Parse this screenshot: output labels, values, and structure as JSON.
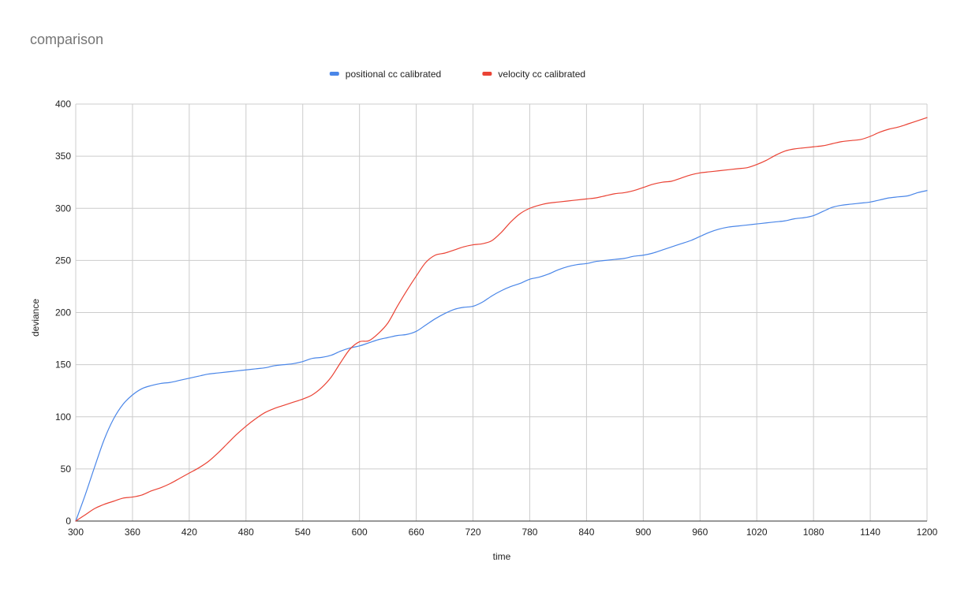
{
  "chart_data": {
    "type": "line",
    "title": "comparison",
    "xlabel": "time",
    "ylabel": "deviance",
    "xlim": [
      300,
      1200
    ],
    "ylim": [
      0,
      400
    ],
    "x_ticks": [
      300,
      360,
      420,
      480,
      540,
      600,
      660,
      720,
      780,
      840,
      900,
      960,
      1020,
      1080,
      1140,
      1200
    ],
    "y_ticks": [
      0,
      50,
      100,
      150,
      200,
      250,
      300,
      350,
      400
    ],
    "grid": true,
    "legend_position": "top",
    "series": [
      {
        "name": "positional cc calibrated",
        "color": "#4a86e8",
        "x": [
          300,
          310,
          320,
          330,
          340,
          350,
          360,
          370,
          380,
          390,
          400,
          410,
          420,
          430,
          440,
          450,
          460,
          470,
          480,
          490,
          500,
          510,
          520,
          530,
          540,
          550,
          560,
          570,
          580,
          590,
          600,
          610,
          620,
          630,
          640,
          650,
          660,
          670,
          680,
          690,
          700,
          710,
          720,
          730,
          740,
          750,
          760,
          770,
          780,
          790,
          800,
          810,
          820,
          830,
          840,
          850,
          860,
          870,
          880,
          890,
          900,
          910,
          920,
          930,
          940,
          950,
          960,
          970,
          980,
          990,
          1000,
          1010,
          1020,
          1030,
          1040,
          1050,
          1060,
          1070,
          1080,
          1090,
          1100,
          1110,
          1120,
          1130,
          1140,
          1150,
          1160,
          1170,
          1180,
          1190,
          1200
        ],
        "values": [
          0,
          25,
          52,
          78,
          98,
          112,
          121,
          127,
          130,
          132,
          133,
          135,
          137,
          139,
          141,
          142,
          143,
          144,
          145,
          146,
          147,
          149,
          150,
          151,
          153,
          156,
          157,
          159,
          163,
          166,
          168,
          171,
          174,
          176,
          178,
          179,
          182,
          188,
          194,
          199,
          203,
          205,
          206,
          210,
          216,
          221,
          225,
          228,
          232,
          234,
          237,
          241,
          244,
          246,
          247,
          249,
          250,
          251,
          252,
          254,
          255,
          257,
          260,
          263,
          266,
          269,
          273,
          277,
          280,
          282,
          283,
          284,
          285,
          286,
          287,
          288,
          290,
          291,
          293,
          297,
          301,
          303,
          304,
          305,
          306,
          308,
          310,
          311,
          312,
          315,
          317
        ]
      },
      {
        "name": "velocity cc calibrated",
        "color": "#ea4335",
        "x": [
          300,
          310,
          320,
          330,
          340,
          350,
          360,
          370,
          380,
          390,
          400,
          410,
          420,
          430,
          440,
          450,
          460,
          470,
          480,
          490,
          500,
          510,
          520,
          530,
          540,
          550,
          560,
          570,
          580,
          590,
          600,
          610,
          620,
          630,
          640,
          650,
          660,
          670,
          680,
          690,
          700,
          710,
          720,
          730,
          740,
          750,
          760,
          770,
          780,
          790,
          800,
          810,
          820,
          830,
          840,
          850,
          860,
          870,
          880,
          890,
          900,
          910,
          920,
          930,
          940,
          950,
          960,
          970,
          980,
          990,
          1000,
          1010,
          1020,
          1030,
          1040,
          1050,
          1060,
          1070,
          1080,
          1090,
          1100,
          1110,
          1120,
          1130,
          1140,
          1150,
          1160,
          1170,
          1180,
          1190,
          1200
        ],
        "values": [
          0,
          6,
          12,
          16,
          19,
          22,
          23,
          25,
          29,
          32,
          36,
          41,
          46,
          51,
          57,
          65,
          74,
          83,
          91,
          98,
          104,
          108,
          111,
          114,
          117,
          121,
          128,
          138,
          152,
          165,
          172,
          173,
          180,
          190,
          206,
          221,
          235,
          248,
          255,
          257,
          260,
          263,
          265,
          266,
          269,
          277,
          287,
          295,
          300,
          303,
          305,
          306,
          307,
          308,
          309,
          310,
          312,
          314,
          315,
          317,
          320,
          323,
          325,
          326,
          329,
          332,
          334,
          335,
          336,
          337,
          338,
          339,
          342,
          346,
          351,
          355,
          357,
          358,
          359,
          360,
          362,
          364,
          365,
          366,
          369,
          373,
          376,
          378,
          381,
          384,
          387
        ]
      }
    ]
  }
}
